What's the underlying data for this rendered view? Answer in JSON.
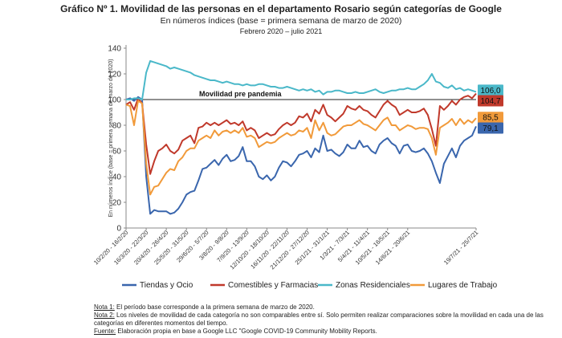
{
  "header": {
    "title": "Gráfico Nº 1. Movilidad de las personas en el departamento Rosario según categorías de Google",
    "subtitle": "En números índices (base = primera semana de marzo de 2020)",
    "period": "Febrero 2020 – julio 2021"
  },
  "notes": [
    {
      "label": "Nota 1:",
      "text": " El período base corresponde a la primera semana de marzo de 2020."
    },
    {
      "label": "Nota 2:",
      "text": " Los niveles de movilidad de cada categoría no son comparables entre sí. Solo permiten realizar comparaciones sobre la movilidad en cada una de las categorías en diferentes momentos del tiempo."
    },
    {
      "label": "Fuente:",
      "text": " Elaboración propia en base a Google LLC \"Google COVID-19 Community Mobility Reports."
    }
  ],
  "chart_data": {
    "type": "line",
    "ylabel": "En números índice (base = primera semana de marzo de 2020)",
    "ylim": [
      0,
      140
    ],
    "yticks": [
      0,
      20,
      40,
      60,
      80,
      100,
      120,
      140
    ],
    "x_tick_labels": [
      "10/2/20 - 16/2/20",
      "16/3/20 - 22/3/20",
      "20/4/20 - 26/4/20",
      "25/5/20 - 31/5/20",
      "29/6/20 - 5/7/20",
      "3/8/20 - 9/8/20",
      "7/9/20 - 13/9/20",
      "12/10/20 - 18/10/20",
      "16/11/20 - 22/11/20",
      "21/12/20 - 27/12/20",
      "25/1/21 - 31/1/21",
      "1/3/21 - 7/3/21",
      "5/4/21 - 11/4/21",
      "10/5/21 - 16/5/21",
      "14/6/21 - 20/6/21",
      "19/7/21 - 25/7/21"
    ],
    "reference_line": {
      "value": 100,
      "label": "Movilidad pre pandemia"
    },
    "legend_position": "bottom",
    "grid": false,
    "series": [
      {
        "name": "Tiendas y Ocio",
        "color": "#3a66ad",
        "end_label": "79,1",
        "values": [
          100,
          101,
          99,
          102,
          100,
          40,
          11,
          14,
          13,
          13,
          13,
          11,
          12,
          15,
          20,
          26,
          28,
          29,
          37,
          46,
          47,
          50,
          53,
          49,
          54,
          57,
          52,
          53,
          56,
          63,
          52,
          52,
          48,
          40,
          38,
          41,
          37,
          40,
          47,
          52,
          51,
          48,
          52,
          57,
          58,
          60,
          55,
          62,
          59,
          72,
          60,
          61,
          58,
          56,
          59,
          65,
          62,
          62,
          68,
          63,
          64,
          60,
          58,
          65,
          68,
          70,
          66,
          64,
          58,
          64,
          65,
          60,
          59,
          60,
          62,
          58,
          52,
          43,
          35,
          50,
          56,
          62,
          55,
          64,
          68,
          70,
          72,
          79.1
        ]
      },
      {
        "name": "Comestibles y Farmacias",
        "color": "#c0392b",
        "end_label": "104,7",
        "values": [
          96,
          98,
          92,
          101,
          97,
          65,
          42,
          52,
          60,
          62,
          65,
          60,
          58,
          61,
          68,
          70,
          72,
          66,
          78,
          79,
          82,
          80,
          82,
          80,
          82,
          84,
          81,
          82,
          80,
          83,
          76,
          78,
          76,
          70,
          72,
          74,
          72,
          73,
          77,
          80,
          82,
          80,
          82,
          87,
          86,
          89,
          83,
          92,
          89,
          96,
          88,
          86,
          83,
          86,
          89,
          95,
          93,
          92,
          95,
          92,
          91,
          88,
          86,
          91,
          96,
          99,
          96,
          94,
          88,
          90,
          92,
          90,
          90,
          91,
          93,
          88,
          77,
          64,
          95,
          92,
          95,
          99,
          96,
          100,
          102,
          103,
          101,
          104.7
        ]
      },
      {
        "name": "Zonas Residenciales",
        "color": "#4ab8c9",
        "end_label": "106,0",
        "values": [
          100,
          100,
          101,
          101,
          100,
          121,
          130,
          129,
          128,
          127,
          126,
          124,
          125,
          124,
          123,
          122,
          121,
          119,
          118,
          117,
          116,
          115,
          115,
          114,
          113,
          114,
          113,
          112,
          112,
          111,
          112,
          111,
          111,
          112,
          112,
          111,
          110,
          110,
          109,
          109,
          110,
          109,
          108,
          107,
          108,
          107,
          108,
          106,
          107,
          104,
          106,
          106,
          107,
          107,
          106,
          105,
          105,
          106,
          105,
          105,
          106,
          107,
          108,
          106,
          105,
          106,
          107,
          107,
          108,
          108,
          109,
          108,
          108,
          110,
          112,
          115,
          120,
          114,
          113,
          110,
          109,
          111,
          108,
          109,
          107,
          108,
          107,
          106.0
        ]
      },
      {
        "name": "Lugares de Trabajo",
        "color": "#f19a3a",
        "end_label": "85,5",
        "values": [
          96,
          95,
          80,
          99,
          97,
          50,
          26,
          32,
          33,
          38,
          43,
          46,
          45,
          52,
          55,
          60,
          62,
          62,
          68,
          70,
          72,
          70,
          76,
          72,
          75,
          76,
          74,
          76,
          74,
          78,
          71,
          72,
          70,
          63,
          65,
          67,
          66,
          67,
          70,
          72,
          74,
          72,
          73,
          76,
          75,
          78,
          70,
          84,
          76,
          82,
          74,
          72,
          73,
          76,
          79,
          80,
          80,
          82,
          84,
          81,
          80,
          78,
          76,
          80,
          84,
          86,
          80,
          80,
          76,
          78,
          80,
          79,
          77,
          78,
          78,
          77,
          70,
          57,
          78,
          80,
          82,
          85,
          80,
          85,
          81,
          84,
          82,
          85.5
        ]
      }
    ]
  }
}
